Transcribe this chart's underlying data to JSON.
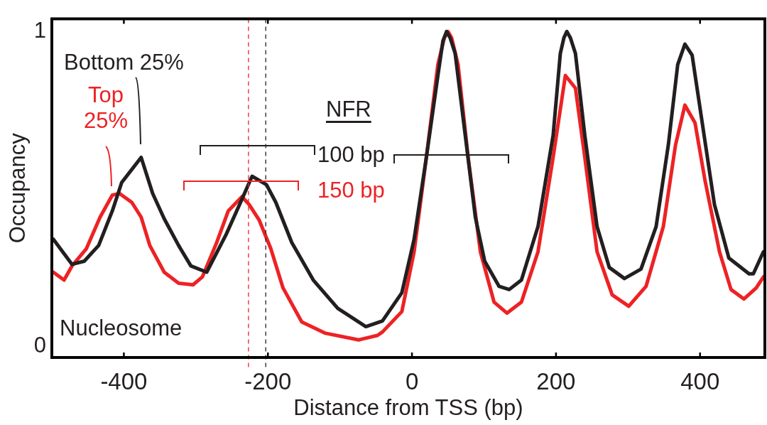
{
  "chart_data": {
    "type": "line",
    "xlabel": "Distance from TSS (bp)",
    "ylabel": "Occupancy",
    "xlim": [
      -500,
      490
    ],
    "xticks": [
      -400,
      -200,
      0,
      200,
      400
    ],
    "ylim": [
      -0.036,
      1.04
    ],
    "yticks": [
      0,
      1
    ],
    "grid": false,
    "legend": false,
    "marker": "none",
    "line_style": "solid",
    "series": [
      {
        "name": "Bottom 25%",
        "color": "#231f20",
        "x": [
          -498,
          -472,
          -455,
          -435,
          -416,
          -403,
          -376,
          -360,
          -344,
          -324,
          -307,
          -285,
          -258,
          -238,
          -222,
          -202,
          -189,
          -167,
          -137,
          -103,
          -64,
          -41,
          -14,
          3,
          20,
          36,
          43,
          48,
          53,
          60,
          74,
          88,
          101,
          121,
          135,
          152,
          175,
          196,
          206,
          211,
          215,
          220,
          227,
          240,
          257,
          274,
          295,
          318,
          339,
          356,
          369,
          379,
          389,
          403,
          420,
          440,
          468,
          474,
          488
        ],
        "values": [
          0.34,
          0.26,
          0.27,
          0.32,
          0.43,
          0.52,
          0.6,
          0.485,
          0.405,
          0.32,
          0.255,
          0.235,
          0.355,
          0.457,
          0.54,
          0.513,
          0.457,
          0.33,
          0.21,
          0.12,
          0.062,
          0.08,
          0.17,
          0.34,
          0.6,
          0.86,
          0.97,
          1.0,
          0.98,
          0.93,
          0.67,
          0.41,
          0.27,
          0.19,
          0.18,
          0.21,
          0.38,
          0.67,
          0.93,
          0.98,
          1.0,
          0.98,
          0.93,
          0.67,
          0.38,
          0.25,
          0.215,
          0.245,
          0.38,
          0.64,
          0.895,
          0.96,
          0.925,
          0.71,
          0.45,
          0.28,
          0.23,
          0.23,
          0.3
        ]
      },
      {
        "name": "Top 25%",
        "color": "#ed2224",
        "x": [
          -498,
          -483,
          -472,
          -452,
          -433,
          -416,
          -406,
          -389,
          -376,
          -364,
          -344,
          -324,
          -304,
          -291,
          -271,
          -255,
          -236,
          -226,
          -212,
          -196,
          -179,
          -153,
          -120,
          -74,
          -48,
          -41,
          -14,
          3,
          20,
          36,
          45,
          50,
          55,
          64,
          78,
          95,
          114,
          132,
          152,
          175,
          196,
          213,
          227,
          240,
          257,
          278,
          301,
          325,
          349,
          366,
          379,
          393,
          407,
          427,
          443,
          461,
          478,
          488
        ],
        "values": [
          0.235,
          0.21,
          0.255,
          0.31,
          0.41,
          0.48,
          0.485,
          0.457,
          0.41,
          0.32,
          0.235,
          0.2,
          0.195,
          0.22,
          0.33,
          0.43,
          0.475,
          0.45,
          0.4,
          0.31,
          0.185,
          0.077,
          0.041,
          0.02,
          0.034,
          0.045,
          0.11,
          0.3,
          0.6,
          0.895,
          0.98,
          1.0,
          0.98,
          0.895,
          0.6,
          0.3,
          0.14,
          0.105,
          0.14,
          0.3,
          0.6,
          0.86,
          0.82,
          0.6,
          0.3,
          0.163,
          0.127,
          0.19,
          0.38,
          0.64,
          0.766,
          0.71,
          0.525,
          0.3,
          0.18,
          0.15,
          0.185,
          0.22
        ]
      }
    ],
    "ref_lines": [
      {
        "axis": "x",
        "value": -227,
        "color": "#ed2224",
        "line_style": "dashed"
      },
      {
        "axis": "x",
        "value": -203,
        "color": "#231f20",
        "line_style": "dashed"
      }
    ],
    "annotations": [
      "NFR",
      "100 bp",
      "150 bp",
      "Nucleosome"
    ]
  }
}
